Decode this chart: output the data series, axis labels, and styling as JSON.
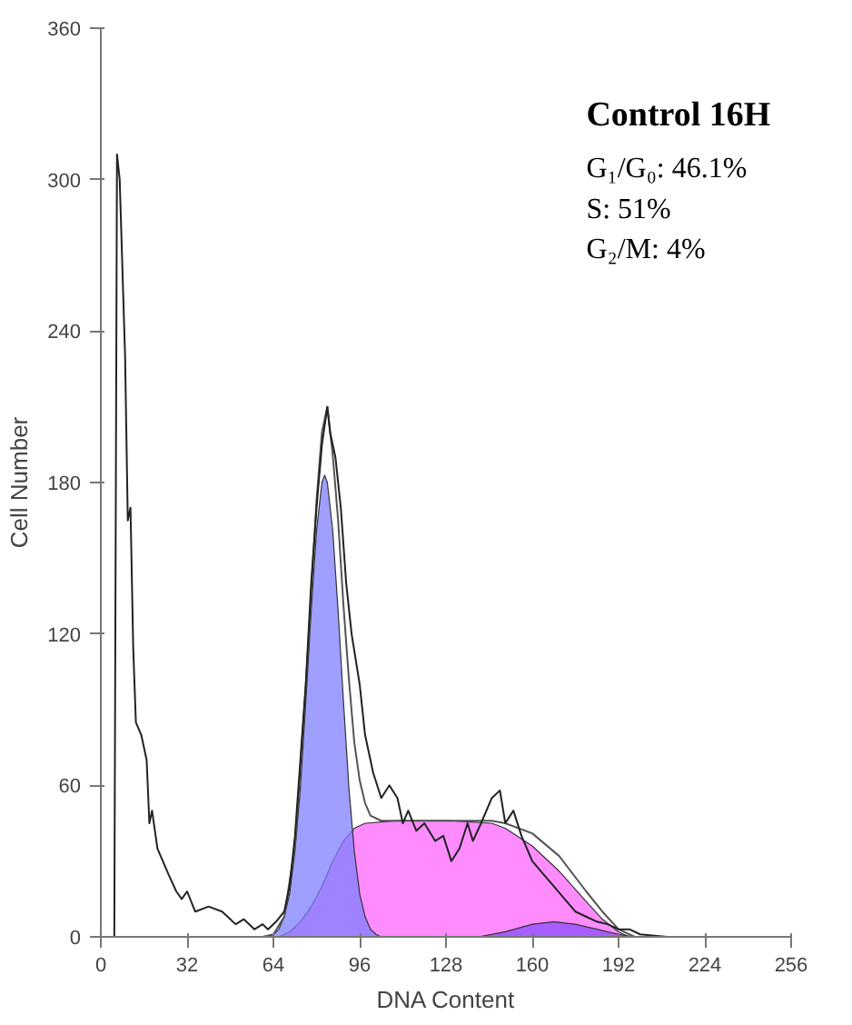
{
  "chart_data": {
    "type": "line",
    "xlabel": "DNA Content",
    "ylabel": "Cell Number",
    "xlim": [
      0,
      256
    ],
    "ylim": [
      0,
      360
    ],
    "xticks": [
      0,
      32,
      64,
      96,
      128,
      160,
      192,
      224,
      256
    ],
    "yticks": [
      0,
      60,
      120,
      180,
      240,
      300,
      360
    ],
    "grid": false,
    "marker": "none",
    "line_style": "solid",
    "annotations": [
      "Control 16H",
      "G₁/G₀:   46.1%",
      "S:          51%",
      "G₂/M:     4%"
    ],
    "series": [
      {
        "type": "area",
        "color": "#ff66ff",
        "x": [
          66,
          70,
          74,
          78,
          82,
          86,
          90,
          94,
          98,
          110,
          130,
          145,
          150,
          160,
          170,
          180,
          186,
          192,
          196
        ],
        "values": [
          0,
          2,
          6,
          12,
          20,
          30,
          38,
          43,
          45,
          46,
          46,
          45,
          43,
          36,
          26,
          14,
          7,
          2,
          0
        ]
      },
      {
        "type": "area",
        "color": "#7f7fff",
        "x": [
          62,
          64,
          66,
          68,
          70,
          72,
          74,
          76,
          78,
          80,
          82,
          83,
          84,
          86,
          88,
          90,
          92,
          94,
          96,
          98,
          100,
          102,
          104
        ],
        "values": [
          0,
          1,
          3,
          8,
          17,
          34,
          59,
          93,
          129,
          161,
          180,
          183,
          180,
          161,
          129,
          93,
          59,
          34,
          17,
          8,
          3,
          1,
          0
        ]
      },
      {
        "type": "area",
        "color": "#8a4dff",
        "x": [
          140,
          150,
          160,
          168,
          176,
          184,
          192,
          198
        ],
        "values": [
          0,
          2,
          5,
          6,
          5,
          3,
          1,
          0
        ]
      },
      {
        "color": "#555555",
        "x": [
          60,
          64,
          68,
          72,
          76,
          80,
          82,
          84,
          86,
          88,
          90,
          92,
          94,
          96,
          98,
          100,
          104,
          110,
          130,
          145,
          150,
          160,
          170,
          180,
          186,
          192,
          198
        ],
        "values": [
          0,
          1,
          8,
          36,
          99,
          173,
          200,
          210,
          191,
          165,
          131,
          102,
          77,
          62,
          53,
          48,
          46,
          46,
          46,
          46,
          45,
          41,
          32,
          18,
          10,
          3,
          0
        ]
      },
      {
        "color": "#222222",
        "x": [
          0,
          5,
          6,
          7,
          9,
          10,
          11,
          12,
          13,
          15,
          17,
          18,
          19,
          21,
          23,
          25,
          28,
          30,
          32,
          35,
          40,
          45,
          50,
          53,
          57,
          60,
          62,
          65,
          68,
          70,
          72,
          74,
          76,
          78,
          80,
          82,
          84,
          85,
          87,
          89,
          91,
          93,
          96,
          98,
          101,
          104,
          107,
          110,
          112,
          114,
          117,
          120,
          124,
          127,
          130,
          133,
          136,
          138,
          141,
          145,
          148,
          150,
          153,
          156,
          160,
          164,
          168,
          172,
          176,
          180,
          184,
          188,
          192,
          196,
          200,
          210,
          256
        ],
        "values": [
          0,
          0,
          310,
          300,
          230,
          165,
          170,
          115,
          85,
          80,
          70,
          45,
          50,
          35,
          30,
          25,
          18,
          15,
          18,
          10,
          12,
          10,
          5,
          7,
          3,
          5,
          3,
          6,
          10,
          20,
          40,
          70,
          100,
          140,
          170,
          195,
          210,
          200,
          190,
          170,
          140,
          120,
          100,
          80,
          65,
          55,
          60,
          55,
          45,
          50,
          42,
          45,
          38,
          40,
          30,
          35,
          45,
          38,
          45,
          55,
          58,
          45,
          50,
          40,
          30,
          25,
          20,
          15,
          10,
          8,
          6,
          5,
          3,
          3,
          1,
          0,
          0
        ]
      }
    ]
  }
}
